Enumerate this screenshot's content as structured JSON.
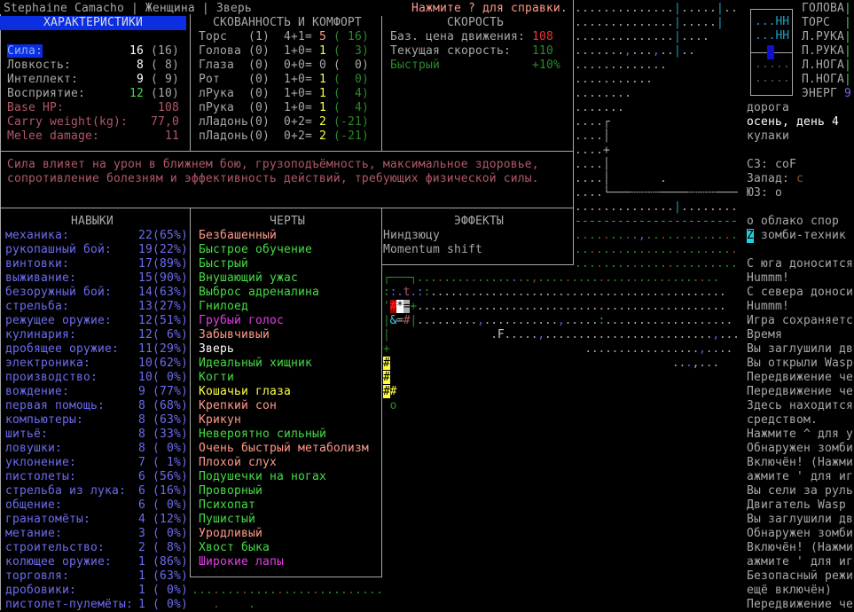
{
  "header": {
    "title": "Stephaine Camacho | Женщина | Зверь",
    "help_hint": "Нажмите ? для справки."
  },
  "stats": {
    "title": "ХАРАКТЕРИСТИКИ",
    "items": [
      {
        "label": "Сила:",
        "value": "16",
        "base": "(16)",
        "selected": true
      },
      {
        "label": "Ловкость:",
        "value": " 8",
        "base": "( 8)"
      },
      {
        "label": "Интеллект:",
        "value": " 9",
        "base": "( 9)"
      },
      {
        "label": "Восприятие:",
        "value": "12",
        "base": "(10)",
        "value_color": "#44dd44"
      }
    ],
    "derived": [
      {
        "label": "Base HP:",
        "value": "108"
      },
      {
        "label": "Carry weight(kg):",
        "value": "77,0"
      },
      {
        "label": "Melee damage:",
        "value": "11"
      }
    ]
  },
  "encumbrance": {
    "title": "СКОВАННОСТЬ И КОМФОРТ",
    "rows": [
      {
        "part": "Торс   ",
        "layers": "(1)",
        "formula": "4+1=",
        "value": "5",
        "value_color": "salmon",
        "comfort": "( 16)",
        "comfort_color": "dgreen"
      },
      {
        "part": "Голова ",
        "layers": "(0)",
        "formula": "1+0=",
        "value": "1",
        "value_color": "yellow",
        "comfort": "(  3)",
        "comfort_color": "dgreen"
      },
      {
        "part": "Глаза  ",
        "layers": "(0)",
        "formula": "0+0=",
        "value": "0",
        "value_color": "gray",
        "comfort": "(  0)",
        "comfort_color": "gray"
      },
      {
        "part": "Рот    ",
        "layers": "(0)",
        "formula": "1+0=",
        "value": "1",
        "value_color": "yellow",
        "comfort": "(  0)",
        "comfort_color": "dgreen"
      },
      {
        "part": "лРука  ",
        "layers": "(0)",
        "formula": "1+0=",
        "value": "1",
        "value_color": "yellow",
        "comfort": "(  4)",
        "comfort_color": "dgreen"
      },
      {
        "part": "пРука  ",
        "layers": "(0)",
        "formula": "1+0=",
        "value": "1",
        "value_color": "yellow",
        "comfort": "(  4)",
        "comfort_color": "dgreen"
      },
      {
        "part": "лЛадонь",
        "layers": "(0)",
        "formula": "0+2=",
        "value": "2",
        "value_color": "yellow",
        "comfort": "(-21)",
        "comfort_color": "dgreen"
      },
      {
        "part": "пЛадонь",
        "layers": "(0)",
        "formula": "0+2=",
        "value": "2",
        "value_color": "yellow",
        "comfort": "(-21)",
        "comfort_color": "dgreen"
      }
    ]
  },
  "speed": {
    "title": "СКОРОСТЬ",
    "base_move_label": "Баз. цена движения:",
    "base_move_value": "108",
    "current_label": "Текущая скорость:",
    "current_value": "110",
    "modifier_label": "Быстрый",
    "modifier_value": "+10%"
  },
  "description": {
    "line1": "Сила влияет на урон в ближнем бою, грузоподъёмность, максимальное здоровье,",
    "line2": "сопротивление болезням и эффективность действий, требующих физической силы."
  },
  "skills": {
    "title": "НАВЫКИ",
    "items": [
      {
        "name": "механика:",
        "value": "22(65%)"
      },
      {
        "name": "рукопашный бой:",
        "value": "19(22%)"
      },
      {
        "name": "винтовки:",
        "value": "17(89%)"
      },
      {
        "name": "выживание:",
        "value": "15(90%)"
      },
      {
        "name": "безоружный бой:",
        "value": "14(63%)"
      },
      {
        "name": "стрельба:",
        "value": "13(27%)"
      },
      {
        "name": "режущее оружие:",
        "value": "12(51%)"
      },
      {
        "name": "кулинария:",
        "value": "12( 6%)"
      },
      {
        "name": "дробящее оружие:",
        "value": "11(29%)"
      },
      {
        "name": "электроника:",
        "value": "10(62%)"
      },
      {
        "name": "производство:",
        "value": "10( 0%)"
      },
      {
        "name": "вождение:",
        "value": "9 (77%)"
      },
      {
        "name": "первая помощь:",
        "value": "8 (68%)"
      },
      {
        "name": "компьютеры:",
        "value": "8 (63%)"
      },
      {
        "name": "шитьё:",
        "value": "8 (33%)"
      },
      {
        "name": "ловушки:",
        "value": "8 ( 0%)"
      },
      {
        "name": "уклонение:",
        "value": "7 ( 1%)"
      },
      {
        "name": "пистолеты:",
        "value": "6 (56%)"
      },
      {
        "name": "стрельба из лука:",
        "value": "6 (16%)"
      },
      {
        "name": "общение:",
        "value": "6 ( 0%)"
      },
      {
        "name": "гранатомёты:",
        "value": "4 (12%)"
      },
      {
        "name": "метание:",
        "value": "3 ( 0%)"
      },
      {
        "name": "строительство:",
        "value": "2 ( 8%)"
      },
      {
        "name": "колющее оружие:",
        "value": "1 (86%)"
      },
      {
        "name": "торговля:",
        "value": "1 (63%)"
      },
      {
        "name": "дробовики:",
        "value": "1 ( 0%)"
      },
      {
        "name": "пистолет-пулемёты:",
        "value": "1 ( 0%)"
      }
    ]
  },
  "traits": {
    "title": "ЧЕРТЫ",
    "items": [
      {
        "name": "Безбашенный",
        "color": "salmon"
      },
      {
        "name": "Быстрое обучение",
        "color": "green"
      },
      {
        "name": "Быстрый",
        "color": "green"
      },
      {
        "name": "Внушающий ужас",
        "color": "green"
      },
      {
        "name": "Выброс адреналина",
        "color": "green"
      },
      {
        "name": "Гнилоед",
        "color": "green"
      },
      {
        "name": "Грубый голос",
        "color": "magenta"
      },
      {
        "name": "Забывчивый",
        "color": "salmon"
      },
      {
        "name": "Зверь",
        "color": "white"
      },
      {
        "name": "Идеальный хищник",
        "color": "green"
      },
      {
        "name": "Когти",
        "color": "green"
      },
      {
        "name": "Кошачьи глаза",
        "color": "yellow"
      },
      {
        "name": "Крепкий сон",
        "color": "salmon"
      },
      {
        "name": "Крикун",
        "color": "salmon"
      },
      {
        "name": "Невероятно сильный",
        "color": "green"
      },
      {
        "name": "Очень быстрый метаболизм",
        "color": "salmon"
      },
      {
        "name": "Плохой слух",
        "color": "salmon"
      },
      {
        "name": "Подушечки на ногах",
        "color": "green"
      },
      {
        "name": "Проворный",
        "color": "green"
      },
      {
        "name": "Психопат",
        "color": "green"
      },
      {
        "name": "Пушистый",
        "color": "green"
      },
      {
        "name": "Уродливый",
        "color": "salmon"
      },
      {
        "name": "Хвост быка",
        "color": "green"
      },
      {
        "name": "Широкие лапы",
        "color": "magenta"
      }
    ]
  },
  "effects": {
    "title": "ЭФФЕКТЫ",
    "items": [
      "Ниндзюцу",
      "Momentum shift"
    ]
  },
  "sidebar": {
    "body_parts": [
      "ГОЛОВА",
      "ТОРС",
      "Л.РУКА",
      "П.РУКА",
      "Л.НОГА",
      "П.НОГА"
    ],
    "energy_label": "ЭНЕРГ",
    "energy_value": "9",
    "minimap_rows": [
      "...HH",
      "...HH",
      "",
      ".....",
      "....."
    ],
    "terrain": "дорога",
    "date": "осень, день 4",
    "weapon": "кулаки",
    "dir_nw": "СЗ: coF",
    "dir_w_label": "Запад:",
    "dir_w_value": "c",
    "dir_sw": "ЮЗ: o",
    "nearby": [
      {
        "glyph": "o",
        "name": "облако спор"
      },
      {
        "glyph": "Z",
        "name": "зомби-техник"
      }
    ],
    "messages": [
      "С юга доносится",
      "Hummm!",
      "С севера доносит",
      "Hummm!",
      "Игра сохраняетс",
      "Время",
      "Вы заглушили дв",
      "Вы открыли Wasp",
      "Передвижение че",
      "Передвижение че",
      "Здесь находится",
      "средством.",
      "Нажмите ^ для у",
      "Обнаружен зомби",
      "Включён! (Нажми",
      "ажмите ' для иг",
      "Вы сели за руль",
      "Двигатель Wasp ",
      "Вы заглушили дв",
      "Обнаружен зомби",
      "Включён! (Нажми",
      "ажмите ' для иг",
      "Безопасный режи",
      "ещё включён)",
      "Передвижение че"
    ]
  },
  "map": {
    "upper": [
      {
        "t": "..............|.....|..",
        "c": "g",
        "m": "ggggggggggggggcgggggcgg"
      },
      {
        "t": "..............|.....|",
        "c": "g",
        "m": "ggggggggggggggcgggggc"
      },
      {
        "t": "..............|....",
        "c": "g",
        "m": "ggggggggggggggcgggg"
      },
      {
        "t": ".......,...,..|..",
        "c": "g",
        "m": "gggggggbgggbggcgg"
      },
      {
        "t": ".............",
        "c": "g"
      },
      {
        "t": "...........",
        "c": "g"
      },
      {
        "t": "........",
        "c": "g"
      },
      {
        "t": ".......",
        "c": "g"
      },
      {
        "t": "....┌",
        "c": "g"
      },
      {
        "t": "....│",
        "c": "g"
      },
      {
        "t": "....+",
        "c": "g"
      },
      {
        "t": "....│",
        "c": "g"
      },
      {
        "t": "....│       .",
        "c": "g"
      },
      {
        "t": "....└───┄┄┄┄────┄┄┄┄───",
        "c": "g"
      },
      {
        "t": "..............|........",
        "c": "g",
        "m": "ggggggggggggggcgggggggg"
      },
      {
        "t": "-----------------------",
        "c": "c"
      },
      {
        "t": ".........,.............",
        "c": "G",
        "m": "GnGGnGGnGbGGnGGnGGnGGnG"
      },
      {
        "t": ".......................",
        "c": "G",
        "m": "GGnGGGnGGGnGGGnGGGnGGGn"
      },
      {
        "t": ".......................",
        "c": "G",
        "m": "GGGnGGGGnGGGGnGGGGnGGGG"
      }
    ],
    "lower": [
      {
        "t": "┌───┐.................,...........................",
        "c": "G",
        "m": "GGGGGGGGnGGGGnGGGGGbGGnGGGGnGGGGnGGGGnGGGGnGGGGnGG"
      },
      {
        "t": "::.t.::............................................",
        "c": "g",
        "m": "GbbmbbG"
      },
      {
        "t": "'#*=+..............................................",
        "c": "g",
        "m": "GRWSG"
      },
      {
        "t": "|&=#|.........,...........,.....:...................",
        "c": "g",
        "m": "GsgmGgggggggggbgggggggggggbgggggc"
      },
      {
        "t": "|               .F.....,.........................,...",
        "c": "g",
        "m": "Gggggggggggggggggwgggggbgggggggggggggggggggggggggbggg"
      },
      {
        "t": "+                             .................,....",
        "c": "g",
        "m": "Gggggggggggggggggggggggggggggggggggggggggggggggbgggg"
      },
      {
        "t": "#                                          ...,...",
        "c": "g",
        "m": "Yggggggggggggggggggggggggggggggggggggggggggggbgg"
      },
      {
        "t": "#",
        "c": "Y"
      },
      {
        "t": "##",
        "c": "Y",
        "m": "Yy"
      },
      {
        "t": " o",
        "c": "G"
      }
    ],
    "bottom": [
      {
        "t": "...........................",
        "c": "G",
        "m": "GGGnGGGnGGGGnGGGGnGGGGnGGGG"
      },
      {
        "t": "   .    .",
        "c": "G",
        "m": "gggnggggG"
      }
    ]
  },
  "colors": {
    "accent_blue": "#0a2ee0",
    "skill": "#6c6cf0",
    "good": "#44dd44",
    "bad": "#ff9a8a",
    "border": "#a8a8a8"
  }
}
